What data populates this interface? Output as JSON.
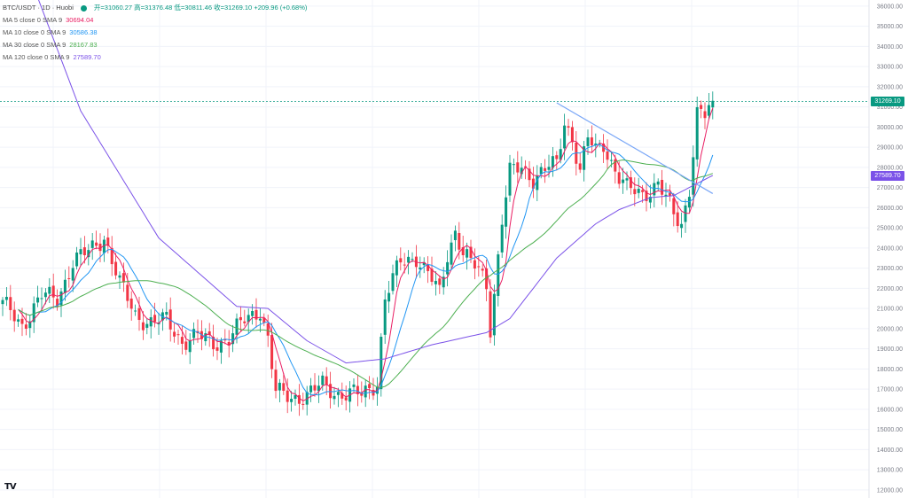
{
  "header": {
    "symbol": "BTC/USDT · 1D · Huobi",
    "status_color": "#089981",
    "ohlc": "开=31060.27 高=31376.48 低=30811.46 收=31269.10 +209.96 (+0.68%)"
  },
  "indicators": [
    {
      "label": "MA 5 close 0 SMA 9",
      "value": "30694.04",
      "color": "#e91e63"
    },
    {
      "label": "MA 10 close 0 SMA 9",
      "value": "30586.38",
      "color": "#2196f3"
    },
    {
      "label": "MA 30 close 0 SMA 9",
      "value": "28167.83",
      "color": "#4caf50"
    },
    {
      "label": "MA 120 close 0 SMA 9",
      "value": "27589.70",
      "color": "#7b52e8"
    }
  ],
  "price_tags": [
    {
      "value": "31269.10",
      "color": "#089981",
      "y": 31269.1
    },
    {
      "value": "27589.70",
      "color": "#7b52e8",
      "y": 27589.7
    }
  ],
  "logo": "TV",
  "colors": {
    "up": "#089981",
    "down": "#f23645",
    "trendline": "#7aa7f7",
    "grid": "#f0f3fa"
  },
  "chart_data": {
    "type": "line",
    "title": "BTC/USDT · 1D · Huobi",
    "y_ticks": [
      "12000.00",
      "13000.00",
      "14000.00",
      "15000.00",
      "16000.00",
      "17000.00",
      "18000.00",
      "19000.00",
      "20000.00",
      "21000.00",
      "22000.00",
      "23000.00",
      "24000.00",
      "25000.00",
      "26000.00",
      "27000.00",
      "28000.00",
      "29000.00",
      "30000.00",
      "31000.00",
      "32000.00",
      "33000.00",
      "34000.00",
      "35000.00",
      "36000.00"
    ],
    "ylim": [
      11600,
      36300
    ],
    "x_range": [
      0,
      180
    ],
    "close_anchors": [
      [
        0,
        21200
      ],
      [
        5,
        20200
      ],
      [
        10,
        21600
      ],
      [
        14,
        21500
      ],
      [
        18,
        23300
      ],
      [
        22,
        23800
      ],
      [
        26,
        24600
      ],
      [
        30,
        22200
      ],
      [
        34,
        20700
      ],
      [
        38,
        20300
      ],
      [
        42,
        20400
      ],
      [
        46,
        19400
      ],
      [
        50,
        19600
      ],
      [
        54,
        19300
      ],
      [
        58,
        19500
      ],
      [
        62,
        20400
      ],
      [
        66,
        21000
      ],
      [
        68,
        19500
      ],
      [
        70,
        16800
      ],
      [
        74,
        16600
      ],
      [
        78,
        16700
      ],
      [
        82,
        17200
      ],
      [
        86,
        16800
      ],
      [
        92,
        16700
      ],
      [
        96,
        17400
      ],
      [
        98,
        21500
      ],
      [
        102,
        23300
      ],
      [
        106,
        23600
      ],
      [
        110,
        22400
      ],
      [
        112,
        21700
      ],
      [
        114,
        23700
      ],
      [
        116,
        24900
      ],
      [
        118,
        23800
      ],
      [
        120,
        23200
      ],
      [
        122,
        22900
      ],
      [
        124,
        22200
      ],
      [
        125,
        20100
      ],
      [
        126,
        21800
      ],
      [
        128,
        25400
      ],
      [
        130,
        27700
      ],
      [
        133,
        28000
      ],
      [
        136,
        27500
      ],
      [
        140,
        28000
      ],
      [
        142,
        28100
      ],
      [
        144,
        30300
      ],
      [
        146,
        29500
      ],
      [
        148,
        27800
      ],
      [
        150,
        29400
      ],
      [
        152,
        28800
      ],
      [
        154,
        29200
      ],
      [
        156,
        28300
      ],
      [
        158,
        27500
      ],
      [
        160,
        26900
      ],
      [
        164,
        26700
      ],
      [
        168,
        27200
      ],
      [
        170,
        26400
      ],
      [
        172,
        25600
      ],
      [
        174,
        25200
      ],
      [
        176,
        27000
      ],
      [
        178,
        30700
      ],
      [
        180,
        30500
      ],
      [
        182,
        31300
      ]
    ],
    "series": [
      {
        "name": "MA 5 close 0 SMA 9",
        "color": "#e91e63",
        "period": 5
      },
      {
        "name": "MA 10 close 0 SMA 9",
        "color": "#2196f3",
        "period": 10
      },
      {
        "name": "MA 30 close 0 SMA 9",
        "color": "#4caf50",
        "period": 30
      },
      {
        "name": "MA 120 close 0 SMA 9",
        "color": "#7b52e8",
        "period": 120
      }
    ],
    "ma120_anchors": [
      [
        0,
        41000
      ],
      [
        20,
        30800
      ],
      [
        40,
        24500
      ],
      [
        60,
        21100
      ],
      [
        68,
        21000
      ],
      [
        78,
        19400
      ],
      [
        88,
        18300
      ],
      [
        98,
        18500
      ],
      [
        110,
        19200
      ],
      [
        124,
        19800
      ],
      [
        130,
        20500
      ],
      [
        142,
        23500
      ],
      [
        152,
        25200
      ],
      [
        158,
        25900
      ],
      [
        166,
        26500
      ],
      [
        172,
        26600
      ],
      [
        182,
        27600
      ]
    ],
    "trendline": [
      [
        142,
        31200
      ],
      [
        182,
        26700
      ]
    ],
    "last_price_line": 31269.1,
    "grid": true
  }
}
